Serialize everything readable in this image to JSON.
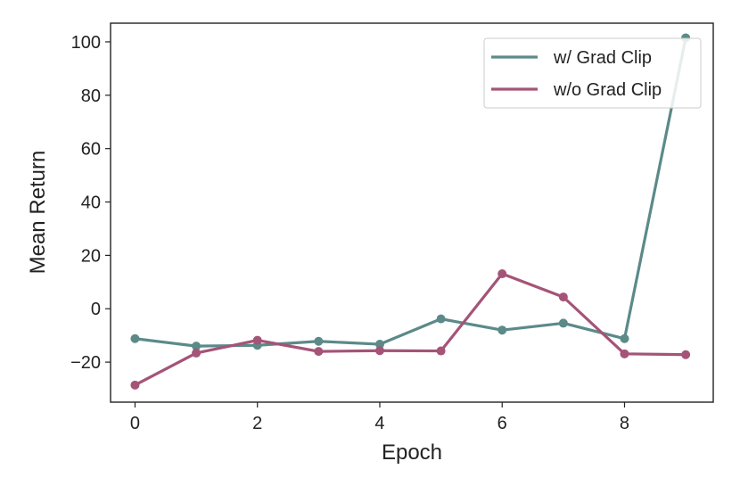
{
  "chart_data": {
    "type": "line",
    "title": "",
    "xlabel": "Epoch",
    "ylabel": "Mean Return",
    "xlim": [
      -0.4,
      9.45
    ],
    "ylim": [
      -35,
      107
    ],
    "xticks": [
      0,
      2,
      4,
      6,
      8
    ],
    "yticks": [
      -20,
      0,
      20,
      40,
      60,
      80,
      100
    ],
    "grid": false,
    "legend_position": "top-right",
    "x": [
      0,
      1,
      2,
      3,
      4,
      5,
      6,
      7,
      8,
      9
    ],
    "series": [
      {
        "name": "w/ Grad Clip",
        "color": "#5b8a89",
        "values": [
          -11.2,
          -14.0,
          -13.7,
          -12.2,
          -13.3,
          -3.8,
          -8.0,
          -5.4,
          -11.2,
          101.5
        ]
      },
      {
        "name": "w/o Grad Clip",
        "color": "#a45477",
        "values": [
          -28.6,
          -16.6,
          -11.8,
          -16.0,
          -15.7,
          -15.8,
          13.1,
          4.4,
          -16.9,
          -17.2
        ]
      }
    ]
  }
}
